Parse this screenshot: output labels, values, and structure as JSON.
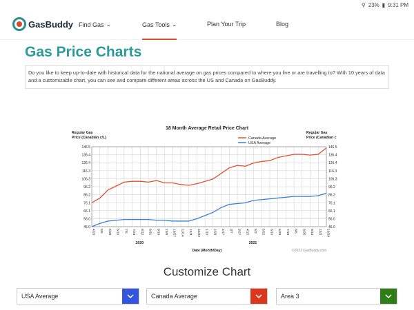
{
  "status_bar": {
    "battery": "23%",
    "time": "9:31 PM"
  },
  "nav": {
    "logo": "GasBuddy",
    "items": [
      "Find Gas",
      "Gas Tools",
      "Plan Your Trip",
      "Blog"
    ],
    "active": "Gas Tools"
  },
  "page": {
    "title": "Gas Price Charts",
    "intro": "Do you like to keep up-to-date with historical data for the national average on gas prices compared to where you live or are travelling to? With 10 years of data and a customizable chart, you can see and compare different areas across the US and Canada on GasBuddy."
  },
  "customize": {
    "heading": "Customize Chart",
    "selects": [
      {
        "value": "USA Average",
        "color": "#3355dd"
      },
      {
        "value": "Canada Average",
        "color": "#d9381e"
      },
      {
        "value": "Area 3",
        "color": "#2e7d18"
      }
    ]
  },
  "chart_data": {
    "type": "line",
    "title": "18 Month Average Retail Price Chart",
    "ylabel_left": "Regular Gas\nPrice (Canadian c/L)",
    "ylabel_right": "Regular Gas\nPrice (Canadian c",
    "xlabel": "Date (Month/Day)",
    "credit": "©2021 GasBuddy.com",
    "year_labels": [
      "2020",
      "2021"
    ],
    "yticks": [
      46.0,
      56.0,
      66.1,
      76.1,
      86.2,
      96.2,
      106.3,
      116.3,
      126.4,
      136.4,
      146.5
    ],
    "ylim": [
      46.0,
      146.5
    ],
    "xticks": [
      "4/20",
      "5/6",
      "5/28",
      "6/16",
      "7/5",
      "7/24",
      "8/12",
      "8/31",
      "9/19",
      "10/8",
      "10/27",
      "11/14",
      "12/3",
      "12/22",
      "1/10",
      "1/29",
      "2/17",
      "3/7",
      "3/27",
      "4/15",
      "5/3",
      "5/22",
      "6/10",
      "6/29",
      "7/18",
      "8/6",
      "8/25",
      "9/13",
      "10/2",
      "10/20"
    ],
    "legend": "top-right",
    "grid": true,
    "series": [
      {
        "name": "Canada Average",
        "color": "#e05030",
        "values": [
          76,
          82,
          92,
          97,
          102,
          103,
          103,
          102,
          104,
          101,
          101,
          99,
          98,
          100,
          103,
          106,
          113,
          120,
          123,
          122,
          126,
          128,
          129,
          133,
          135,
          137,
          137,
          136,
          137,
          145
        ]
      },
      {
        "name": "USA Average",
        "color": "#3a7fd5",
        "values": [
          46,
          50,
          53,
          54,
          55,
          55,
          55,
          55,
          54,
          54,
          53,
          53,
          53,
          56,
          60,
          64,
          70,
          74,
          75,
          76,
          79,
          80,
          81,
          82,
          83,
          84,
          84,
          84,
          85,
          88
        ]
      }
    ]
  }
}
